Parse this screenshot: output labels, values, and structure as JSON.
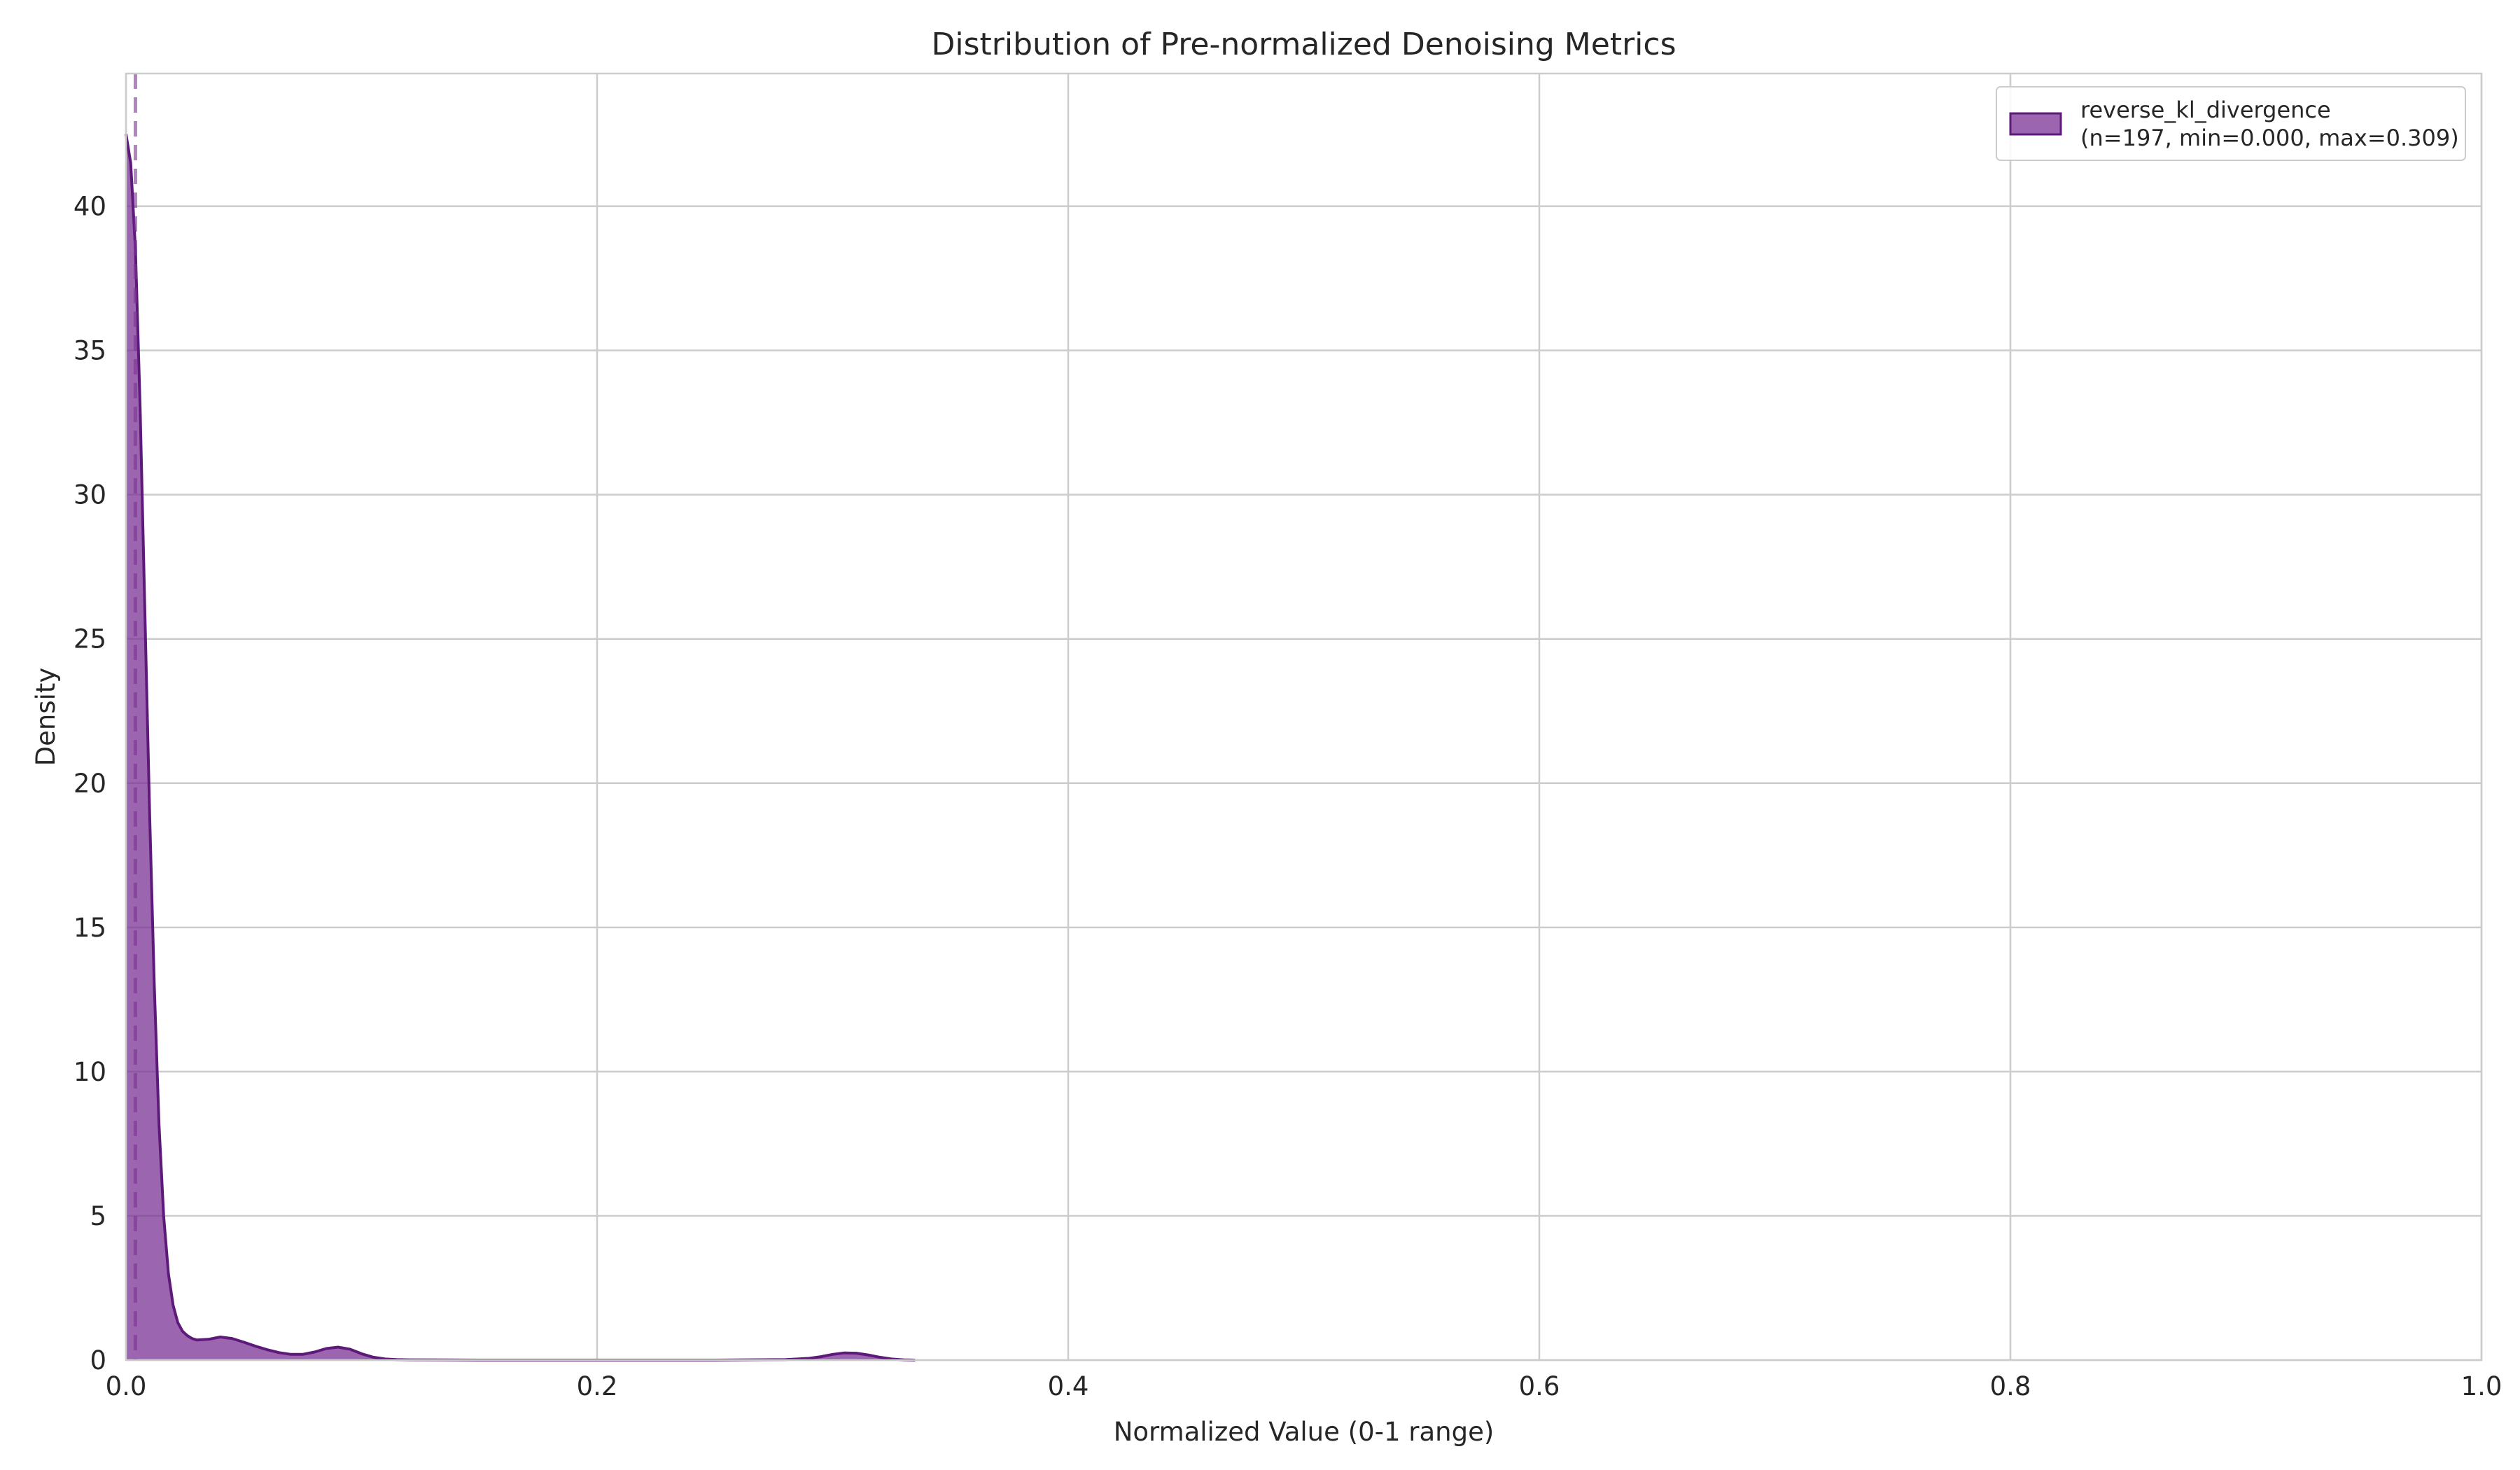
{
  "chart_data": {
    "type": "area",
    "title": "Distribution of Pre-normalized Denoising Metrics",
    "xlabel": "Normalized Value (0-1 range)",
    "ylabel": "Density",
    "xlim": [
      0,
      1
    ],
    "ylim": [
      0,
      44.6
    ],
    "grid": true,
    "legend_position": "top-right",
    "x_ticks": [
      "0.0",
      "0.2",
      "0.4",
      "0.6",
      "0.8",
      "1.0"
    ],
    "y_ticks": [
      "0",
      "5",
      "10",
      "15",
      "20",
      "25",
      "30",
      "35",
      "40"
    ],
    "series": [
      {
        "name": "reverse_kl_divergence",
        "legend_label_line1": "reverse_kl_divergence",
        "legend_label_line2": "(n=197, min=0.000, max=0.309)",
        "color": "#7b3294",
        "x": [
          0.0,
          0.002,
          0.004,
          0.006,
          0.008,
          0.01,
          0.012,
          0.014,
          0.016,
          0.018,
          0.02,
          0.022,
          0.024,
          0.026,
          0.028,
          0.03,
          0.035,
          0.04,
          0.045,
          0.05,
          0.055,
          0.06,
          0.065,
          0.07,
          0.075,
          0.08,
          0.085,
          0.09,
          0.095,
          0.1,
          0.105,
          0.11,
          0.115,
          0.12,
          0.15,
          0.2,
          0.25,
          0.28,
          0.29,
          0.295,
          0.3,
          0.305,
          0.31,
          0.315,
          0.32,
          0.325,
          0.33,
          0.335
        ],
        "y": [
          42.5,
          41.5,
          38.5,
          33.0,
          26.0,
          19.0,
          13.0,
          8.2,
          5.0,
          3.0,
          1.9,
          1.3,
          1.0,
          0.85,
          0.75,
          0.7,
          0.72,
          0.8,
          0.75,
          0.62,
          0.48,
          0.36,
          0.26,
          0.2,
          0.2,
          0.28,
          0.4,
          0.45,
          0.38,
          0.22,
          0.1,
          0.04,
          0.02,
          0.01,
          0.0,
          0.0,
          0.0,
          0.02,
          0.06,
          0.12,
          0.2,
          0.25,
          0.24,
          0.18,
          0.1,
          0.04,
          0.01,
          0.0
        ],
        "mean_line_x": 0.004
      }
    ]
  }
}
